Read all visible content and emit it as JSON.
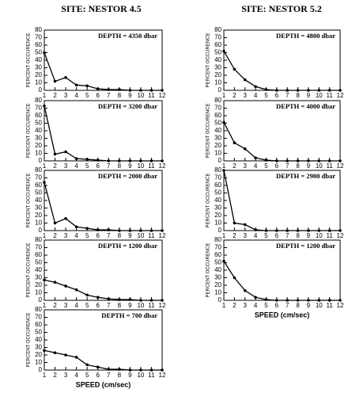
{
  "site_titles": [
    "SITE: NESTOR 4.5",
    "SITE: NESTOR 5.2"
  ],
  "chart_data": [
    {
      "type": "line",
      "annotation": "DEPTH = 4350 dbar",
      "ylabel": "PERCENT OCCURENCE",
      "color": "#000000",
      "x": [
        1,
        2,
        3,
        4,
        5,
        6,
        7,
        8,
        9,
        10,
        11,
        12
      ],
      "values": [
        50,
        12,
        17,
        7,
        6,
        2,
        1,
        1,
        0,
        0,
        0,
        0
      ],
      "xlim": [
        1,
        12
      ],
      "ylim": [
        0,
        80
      ],
      "xticks": [
        1,
        2,
        3,
        4,
        5,
        6,
        7,
        8,
        9,
        10,
        11,
        12
      ],
      "yticks": [
        0,
        10,
        20,
        30,
        40,
        50,
        60,
        70,
        80
      ]
    },
    {
      "type": "line",
      "annotation": "DEPTH = 3200 dbar",
      "ylabel": "PERCENT OCCURENCE",
      "color": "#000000",
      "x": [
        1,
        2,
        3,
        4,
        5,
        6,
        7,
        8,
        9,
        10,
        11,
        12
      ],
      "values": [
        73,
        9,
        12,
        3,
        2,
        1,
        0,
        0,
        0,
        0,
        0,
        0
      ],
      "xlim": [
        1,
        12
      ],
      "ylim": [
        0,
        80
      ],
      "xticks": [
        1,
        2,
        3,
        4,
        5,
        6,
        7,
        8,
        9,
        10,
        11,
        12
      ],
      "yticks": [
        0,
        10,
        20,
        30,
        40,
        50,
        60,
        70,
        80
      ]
    },
    {
      "type": "line",
      "annotation": "DEPTH = 2000 dbar",
      "ylabel": "PERCENT OCCURENCE",
      "color": "#000000",
      "x": [
        1,
        2,
        3,
        4,
        5,
        6,
        7,
        8,
        9,
        10,
        11,
        12
      ],
      "values": [
        64,
        10,
        16,
        5,
        3,
        1,
        1,
        0,
        0,
        0,
        0,
        0
      ],
      "xlim": [
        1,
        12
      ],
      "ylim": [
        0,
        80
      ],
      "xticks": [
        1,
        2,
        3,
        4,
        5,
        6,
        7,
        8,
        9,
        10,
        11,
        12
      ],
      "yticks": [
        0,
        10,
        20,
        30,
        40,
        50,
        60,
        70,
        80
      ]
    },
    {
      "type": "line",
      "annotation": "DEPTH = 1200 dbar",
      "ylabel": "PERCENT OCCURENCE",
      "color": "#000000",
      "x": [
        1,
        2,
        3,
        4,
        5,
        6,
        7,
        8,
        9,
        10,
        11,
        12
      ],
      "values": [
        27,
        24,
        19,
        14,
        7,
        4,
        2,
        1,
        1,
        0,
        0,
        0
      ],
      "xlim": [
        1,
        12
      ],
      "ylim": [
        0,
        80
      ],
      "xticks": [
        1,
        2,
        3,
        4,
        5,
        6,
        7,
        8,
        9,
        10,
        11,
        12
      ],
      "yticks": [
        0,
        10,
        20,
        30,
        40,
        50,
        60,
        70,
        80
      ]
    },
    {
      "type": "line",
      "annotation": "DEPTH = 700 dbar",
      "ylabel": "PERCENT OCCURENCE",
      "xlabel": "SPEED  (cm/sec)",
      "color": "#000000",
      "x": [
        1,
        2,
        3,
        4,
        5,
        6,
        7,
        8,
        9,
        10,
        11,
        12
      ],
      "values": [
        26,
        23,
        20,
        17,
        7,
        4,
        1,
        1,
        0,
        0,
        0,
        0
      ],
      "xlim": [
        1,
        12
      ],
      "ylim": [
        0,
        80
      ],
      "xticks": [
        1,
        2,
        3,
        4,
        5,
        6,
        7,
        8,
        9,
        10,
        11,
        12
      ],
      "yticks": [
        0,
        10,
        20,
        30,
        40,
        50,
        60,
        70,
        80
      ]
    },
    {
      "type": "line",
      "annotation": "DEPTH = 4800 dbar",
      "ylabel": "PERCENT OCCURENCE",
      "color": "#000000",
      "x": [
        1,
        2,
        3,
        4,
        5,
        6,
        7,
        8,
        9,
        10,
        11,
        12
      ],
      "values": [
        52,
        28,
        14,
        5,
        1,
        0,
        0,
        0,
        0,
        0,
        0,
        0
      ],
      "xlim": [
        1,
        12
      ],
      "ylim": [
        0,
        80
      ],
      "xticks": [
        1,
        2,
        3,
        4,
        5,
        6,
        7,
        8,
        9,
        10,
        11,
        12
      ],
      "yticks": [
        0,
        10,
        20,
        30,
        40,
        50,
        60,
        70,
        80
      ]
    },
    {
      "type": "line",
      "annotation": "DEPTH = 4000 dbar",
      "ylabel": "PERCENT OCCURENCE",
      "color": "#000000",
      "x": [
        1,
        2,
        3,
        4,
        5,
        6,
        7,
        8,
        9,
        10,
        11,
        12
      ],
      "values": [
        51,
        24,
        16,
        4,
        1,
        0,
        0,
        0,
        0,
        0,
        0,
        0
      ],
      "xlim": [
        1,
        12
      ],
      "ylim": [
        0,
        80
      ],
      "xticks": [
        1,
        2,
        3,
        4,
        5,
        6,
        7,
        8,
        9,
        10,
        11,
        12
      ],
      "yticks": [
        0,
        10,
        20,
        30,
        40,
        50,
        60,
        70,
        80
      ]
    },
    {
      "type": "line",
      "annotation": "DEPTH = 2900 dbar",
      "ylabel": "PERCENT OCCURENCE",
      "color": "#000000",
      "x": [
        1,
        2,
        3,
        4,
        5,
        6,
        7,
        8,
        9,
        10,
        11,
        12
      ],
      "values": [
        80,
        10,
        8,
        1,
        0,
        0,
        0,
        0,
        0,
        0,
        0,
        0
      ],
      "xlim": [
        1,
        12
      ],
      "ylim": [
        0,
        80
      ],
      "xticks": [
        1,
        2,
        3,
        4,
        5,
        6,
        7,
        8,
        9,
        10,
        11,
        12
      ],
      "yticks": [
        0,
        10,
        20,
        30,
        40,
        50,
        60,
        70,
        80
      ]
    },
    {
      "type": "line",
      "annotation": "DEPTH = 1200 dbar",
      "ylabel": "PERCENT OCCURENCE",
      "xlabel": "SPEED (cm/sec)",
      "color": "#000000",
      "x": [
        1,
        2,
        3,
        4,
        5,
        6,
        7,
        8,
        9,
        10,
        11,
        12
      ],
      "values": [
        52,
        30,
        13,
        4,
        1,
        0,
        0,
        0,
        0,
        0,
        0,
        0
      ],
      "xlim": [
        1,
        12
      ],
      "ylim": [
        0,
        80
      ],
      "xticks": [
        1,
        2,
        3,
        4,
        5,
        6,
        7,
        8,
        9,
        10,
        11,
        12
      ],
      "yticks": [
        0,
        10,
        20,
        30,
        40,
        50,
        60,
        70,
        80
      ]
    }
  ]
}
